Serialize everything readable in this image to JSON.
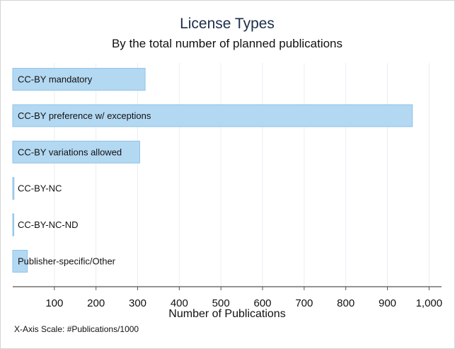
{
  "chart_data": {
    "type": "bar",
    "orientation": "horizontal",
    "title": "License Types",
    "subtitle": "By the total number of planned publications",
    "xlabel": "Number of Publications",
    "note": "X-Axis Scale: #Publications/1000",
    "categories": [
      "CC-BY mandatory",
      "CC-BY preference w/ exceptions",
      "CC-BY variations allowed",
      "CC-BY-NC",
      "CC-BY-NC-ND",
      "Publisher-specific/Other"
    ],
    "values": [
      318,
      960,
      305,
      3,
      2,
      35
    ],
    "xlim": [
      0,
      1030
    ],
    "xticks": [
      100,
      200,
      300,
      400,
      500,
      600,
      700,
      800,
      900,
      1000
    ],
    "xtick_labels": [
      "100",
      "200",
      "300",
      "400",
      "500",
      "600",
      "700",
      "800",
      "900",
      "1,000"
    ],
    "grid": true,
    "colors": {
      "bar_fill": "#b3d8f2",
      "bar_stroke": "#8ec3ea",
      "grid": "#e8eef3",
      "axis": "#555555"
    }
  }
}
